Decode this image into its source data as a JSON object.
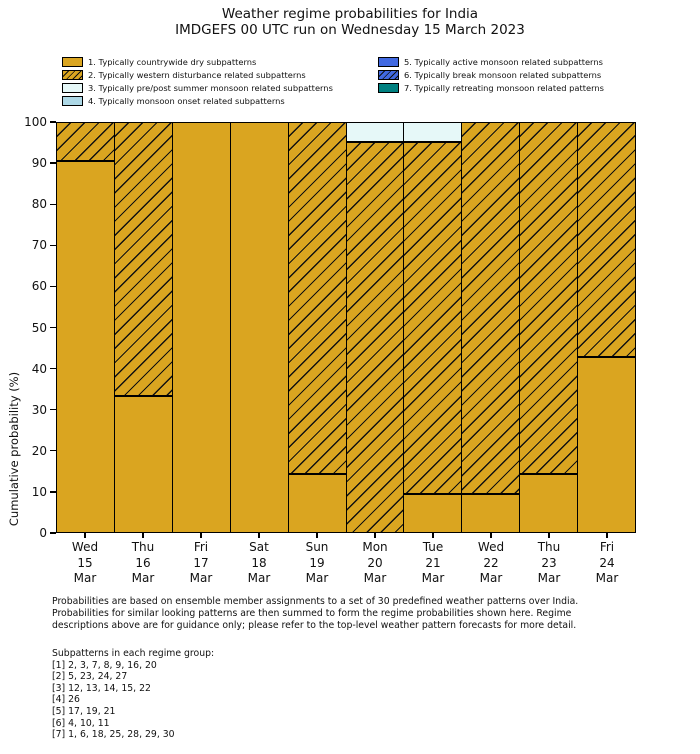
{
  "header": {
    "title": "Weather regime probabilities for India",
    "subtitle": "IMDGEFS 00 UTC run on Wednesday 15 March 2023"
  },
  "colors": {
    "dry": "#DAA520",
    "western_disturbance": "#DAA520",
    "pre_post_summer": "#E6F8F8",
    "monsoon_onset": "#ADD8E6",
    "active_monsoon": "#4169E1",
    "break_monsoon": "#4169E1",
    "retreating_monsoon": "#008080",
    "edge": "#000000",
    "hatch": "#111111"
  },
  "legend": {
    "columns": 2,
    "items_per_first_column": 4,
    "items": [
      {
        "label": "1. Typically countrywide dry subpatterns",
        "color": "#DAA520",
        "hatch": false
      },
      {
        "label": "2. Typically western disturbance related subpatterns",
        "color": "#DAA520",
        "hatch": true
      },
      {
        "label": "3. Typically pre/post summer monsoon related subpatterns",
        "color": "#E6F8F8",
        "hatch": false
      },
      {
        "label": "4. Typically monsoon onset related subpatterns",
        "color": "#ADD8E6",
        "hatch": false
      },
      {
        "label": "5. Typically active monsoon related subpatterns",
        "color": "#4169E1",
        "hatch": false
      },
      {
        "label": "6. Typically break monsoon related subpatterns",
        "color": "#4169E1",
        "hatch": true
      },
      {
        "label": "7. Typically retreating monsoon related patterns",
        "color": "#008080",
        "hatch": false
      }
    ]
  },
  "chart_data": {
    "type": "bar",
    "stacked": true,
    "title": "Weather regime probabilities for India",
    "subtitle": "IMDGEFS 00 UTC run on Wednesday 15 March 2023",
    "xlabel": "",
    "ylabel": "Cumulative probability (%)",
    "ylim": [
      0,
      100
    ],
    "yticks": [
      0,
      10,
      20,
      30,
      40,
      50,
      60,
      70,
      80,
      90,
      100
    ],
    "grid": false,
    "legend_position": "upper center, above axes",
    "categories": [
      [
        "Wed",
        "15",
        "Mar"
      ],
      [
        "Thu",
        "16",
        "Mar"
      ],
      [
        "Fri",
        "17",
        "Mar"
      ],
      [
        "Sat",
        "18",
        "Mar"
      ],
      [
        "Sun",
        "19",
        "Mar"
      ],
      [
        "Mon",
        "20",
        "Mar"
      ],
      [
        "Tue",
        "21",
        "Mar"
      ],
      [
        "Wed",
        "22",
        "Mar"
      ],
      [
        "Thu",
        "23",
        "Mar"
      ],
      [
        "Fri",
        "24",
        "Mar"
      ]
    ],
    "series": [
      {
        "name": "1. Typically countrywide dry subpatterns",
        "legend_index": 0,
        "values": [
          90.5,
          33.3,
          100,
          100,
          14.3,
          0,
          9.5,
          9.5,
          14.3,
          42.9
        ]
      },
      {
        "name": "2. Typically western disturbance related subpatterns",
        "legend_index": 1,
        "values": [
          9.5,
          66.7,
          0,
          0,
          85.7,
          95.2,
          85.7,
          90.5,
          85.7,
          57.1
        ]
      },
      {
        "name": "3. Typically pre/post summer monsoon related subpatterns",
        "legend_index": 2,
        "values": [
          0,
          0,
          0,
          0,
          0,
          4.8,
          4.8,
          0,
          0,
          0
        ]
      },
      {
        "name": "4. Typically monsoon onset related subpatterns",
        "legend_index": 3,
        "values": [
          0,
          0,
          0,
          0,
          0,
          0,
          0,
          0,
          0,
          0
        ]
      },
      {
        "name": "5. Typically active monsoon related subpatterns",
        "legend_index": 4,
        "values": [
          0,
          0,
          0,
          0,
          0,
          0,
          0,
          0,
          0,
          0
        ]
      },
      {
        "name": "6. Typically break monsoon related subpatterns",
        "legend_index": 5,
        "values": [
          0,
          0,
          0,
          0,
          0,
          0,
          0,
          0,
          0,
          0
        ]
      },
      {
        "name": "7. Typically retreating monsoon related patterns",
        "legend_index": 6,
        "values": [
          0,
          0,
          0,
          0,
          0,
          0,
          0,
          0,
          0,
          0
        ]
      }
    ]
  },
  "footer": {
    "lines": [
      "Probabilities are based on ensemble member assignments to a set of 30 predefined weather patterns over India.",
      "Probabilities for similar looking patterns are then summed to form the regime probabilities shown here. Regime",
      "descriptions above are for guidance only; please refer to the top-level weather pattern forecasts for more detail."
    ]
  },
  "subpatterns": {
    "heading": "Subpatterns in each regime group:",
    "groups": [
      "[1] 2, 3, 7, 8, 9, 16, 20",
      "[2] 5, 23, 24, 27",
      "[3] 12, 13, 14, 15, 22",
      "[4] 26",
      "[5] 17, 19, 21",
      "[6] 4, 10, 11",
      "[7] 1, 6, 18, 25, 28, 29, 30"
    ]
  }
}
